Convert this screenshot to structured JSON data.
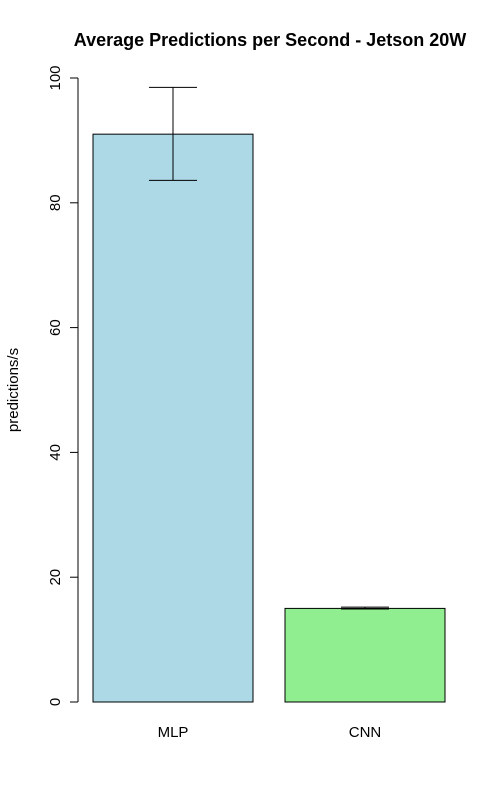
{
  "chart_data": {
    "type": "bar",
    "title": "Average Predictions per Second - Jetson 20W",
    "xlabel": "",
    "ylabel": "predictions/s",
    "categories": [
      "MLP",
      "CNN"
    ],
    "values": [
      91,
      15
    ],
    "error_bars": [
      {
        "low": 83.6,
        "high": 98.5
      },
      {
        "low": 14.9,
        "high": 15.2
      }
    ],
    "bar_colors": [
      "#add8e6",
      "#90ee90"
    ],
    "ylim": [
      0,
      100
    ],
    "y_ticks": [
      0,
      20,
      40,
      60,
      80,
      100
    ],
    "grid": false,
    "legend": "none"
  }
}
